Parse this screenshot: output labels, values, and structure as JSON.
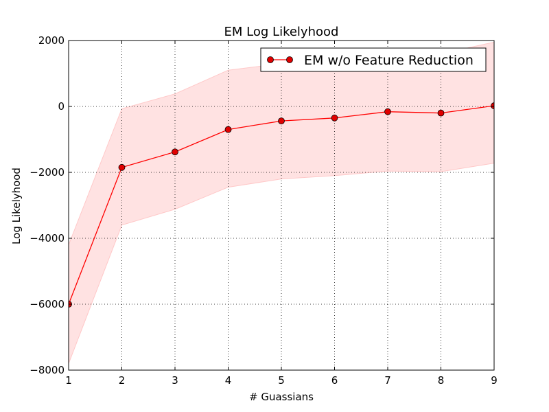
{
  "chart_data": {
    "type": "line",
    "title": "EM Log Likelyhood",
    "xlabel": "# Guassians",
    "ylabel": "Log Likelyhood",
    "xlim": [
      1,
      9
    ],
    "ylim": [
      -8000,
      2000
    ],
    "xticks": [
      1,
      2,
      3,
      4,
      5,
      6,
      7,
      8,
      9
    ],
    "yticks": [
      -8000,
      -6000,
      -4000,
      -2000,
      0,
      2000
    ],
    "ytick_labels": [
      "−8000",
      "−6000",
      "−4000",
      "−2000",
      "0",
      "2000"
    ],
    "grid": true,
    "legend_position": "top-right",
    "series": [
      {
        "name": "EM w/o Feature Reduction",
        "x": [
          1,
          2,
          3,
          4,
          5,
          6,
          7,
          8,
          9
        ],
        "y": [
          -6000,
          -1850,
          -1380,
          -700,
          -440,
          -350,
          -160,
          -200,
          20
        ],
        "band_lower": [
          -7800,
          -3600,
          -3120,
          -2450,
          -2200,
          -2100,
          -1960,
          -1980,
          -1720
        ],
        "band_upper": [
          -4200,
          -70,
          380,
          1100,
          1300,
          1400,
          1600,
          1600,
          1950
        ],
        "color": "#ff0000",
        "band_color": "#ffdddd",
        "marker_color": "#e00000"
      }
    ]
  }
}
